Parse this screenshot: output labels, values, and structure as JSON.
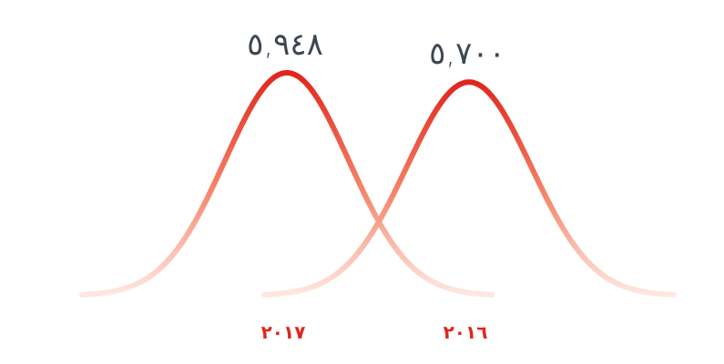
{
  "chart_data": {
    "type": "bell",
    "categories": [
      "٢٠١٧",
      "٢٠١٦"
    ],
    "values": [
      5948,
      5700
    ],
    "value_labels": [
      "٥,٩٤٨",
      "٥,٧٠٠"
    ],
    "color": "#e0261c"
  }
}
